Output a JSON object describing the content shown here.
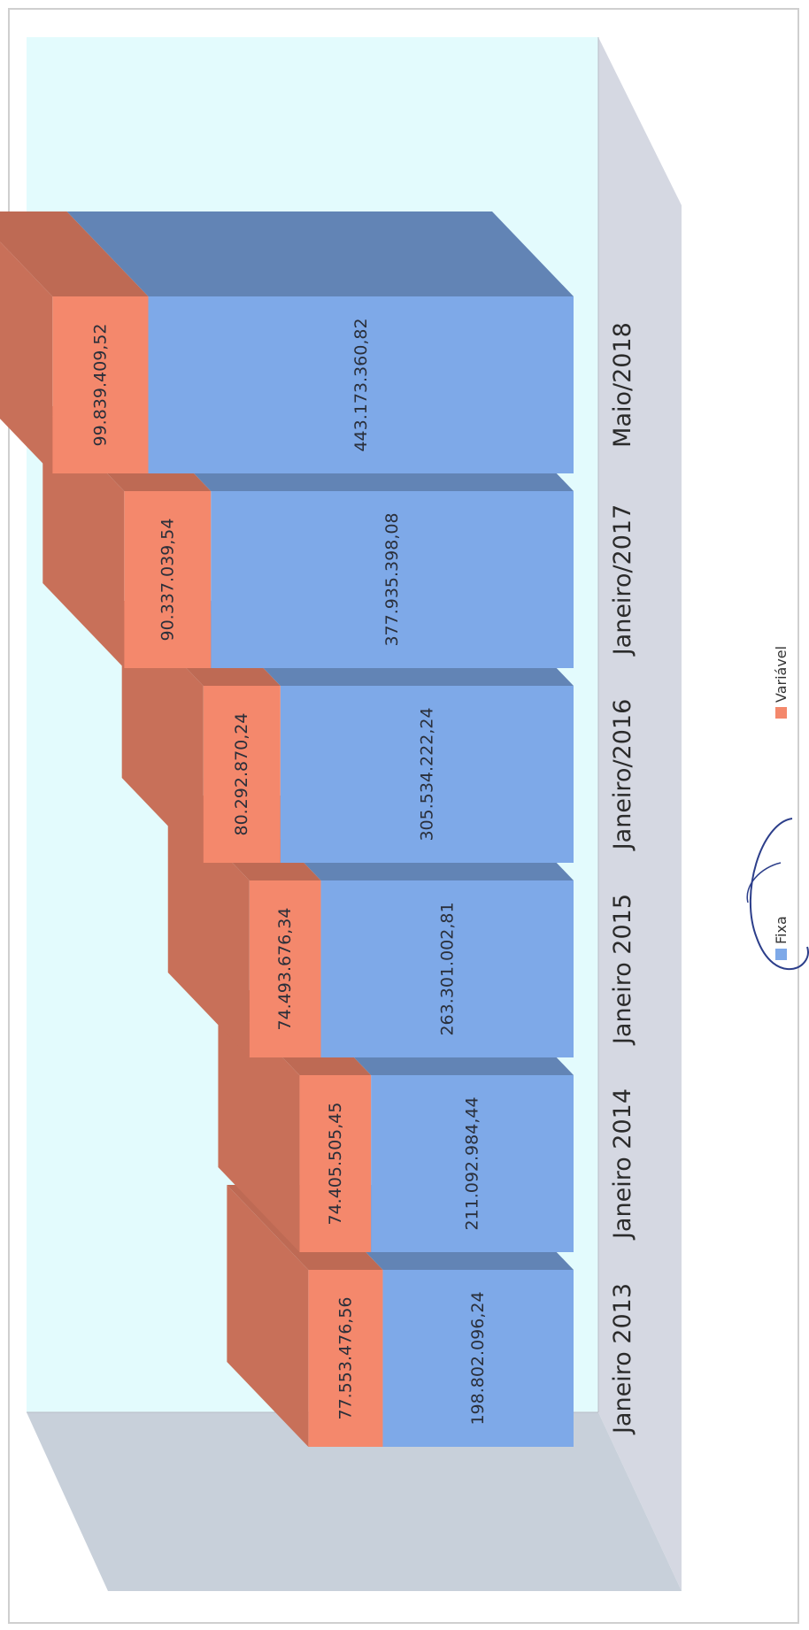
{
  "chart_data": {
    "type": "bar",
    "stacked": true,
    "orientation": "rotated-page",
    "categories": [
      "Janeiro 2013",
      "Janeiro 2014",
      "Janeiro 2015",
      "Janeiro/2016",
      "Janeiro/2017",
      "Maio/2018"
    ],
    "series": [
      {
        "name": "Fixa",
        "color": "#7ea9e8",
        "values": [
          198802096.24,
          211092984.44,
          263301002.81,
          305534222.24,
          377935398.08,
          443173360.82
        ],
        "labels": [
          "198.802.096,24",
          "211.092.984,44",
          "263.301.002,81",
          "305.534.222,24",
          "377.935.398,08",
          "443.173.360,82"
        ]
      },
      {
        "name": "Variável",
        "color": "#f4886c",
        "values": [
          77553476.56,
          74405505.45,
          74493676.34,
          80292870.24,
          90337039.54,
          99839409.52
        ],
        "labels": [
          "77.553.476,56",
          "74.405.505,45",
          "74.493.676,34",
          "80.292.870,24",
          "90.337.039,54",
          "99.839.409,52"
        ]
      }
    ],
    "legend_position": "bottom",
    "grid": false,
    "ylim": [
      0,
      570000000
    ],
    "title": "",
    "xlabel": "",
    "ylabel": ""
  }
}
